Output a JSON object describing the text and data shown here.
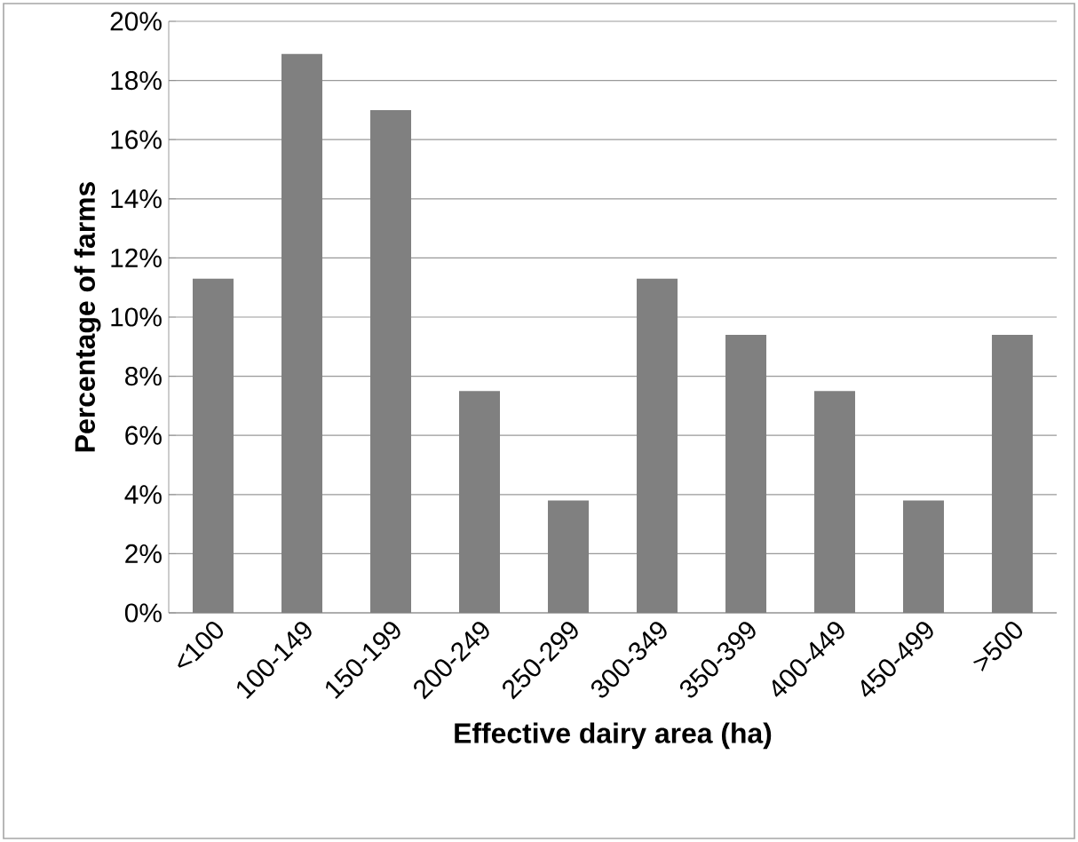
{
  "chart_data": {
    "type": "bar",
    "xlabel": "Effective dairy area (ha)",
    "ylabel": "Percentage of farms",
    "categories": [
      "<100",
      "100-149",
      "150-199",
      "200-249",
      "250-299",
      "300-349",
      "350-399",
      "400-449",
      "450-499",
      ">500"
    ],
    "values": [
      11.3,
      18.9,
      17.0,
      7.5,
      3.8,
      11.3,
      9.4,
      7.5,
      3.8,
      9.4
    ],
    "color": "#808080",
    "ylim": [
      0,
      20
    ],
    "yticks": [
      {
        "value": 0,
        "label": "0%"
      },
      {
        "value": 2,
        "label": "2%"
      },
      {
        "value": 4,
        "label": "4%"
      },
      {
        "value": 6,
        "label": "6%"
      },
      {
        "value": 8,
        "label": "8%"
      },
      {
        "value": 10,
        "label": "10%"
      },
      {
        "value": 12,
        "label": "12%"
      },
      {
        "value": 14,
        "label": "14%"
      },
      {
        "value": 16,
        "label": "16%"
      },
      {
        "value": 18,
        "label": "18%"
      },
      {
        "value": 20,
        "label": "20%"
      }
    ],
    "grid": "y"
  }
}
